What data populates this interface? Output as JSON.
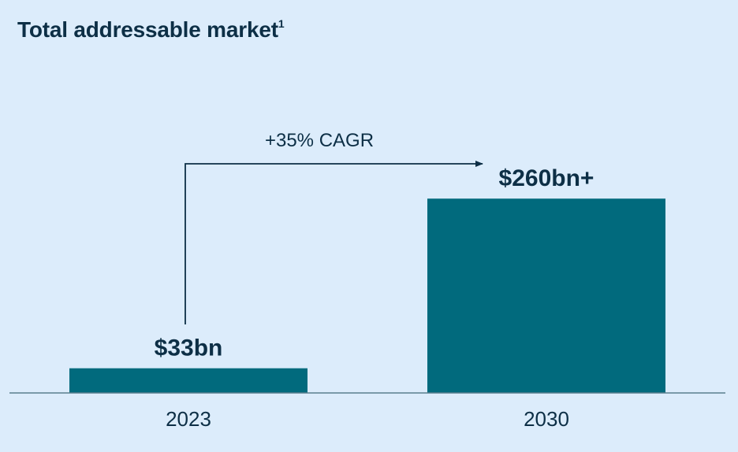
{
  "chart_data": {
    "type": "bar",
    "title": "Total addressable market",
    "title_footnote": "1",
    "categories": [
      "2023",
      "2030"
    ],
    "values": [
      33,
      260
    ],
    "value_labels": [
      "$33bn",
      "$260bn+"
    ],
    "annotation": "+35% CAGR",
    "xlabel": "",
    "ylabel": "",
    "ylim": [
      0,
      275
    ],
    "grid": false,
    "colors": {
      "bar": "#016a7d",
      "text": "#0d2f46",
      "axis": "#5a7e8e",
      "background": "#dcecfb"
    }
  }
}
